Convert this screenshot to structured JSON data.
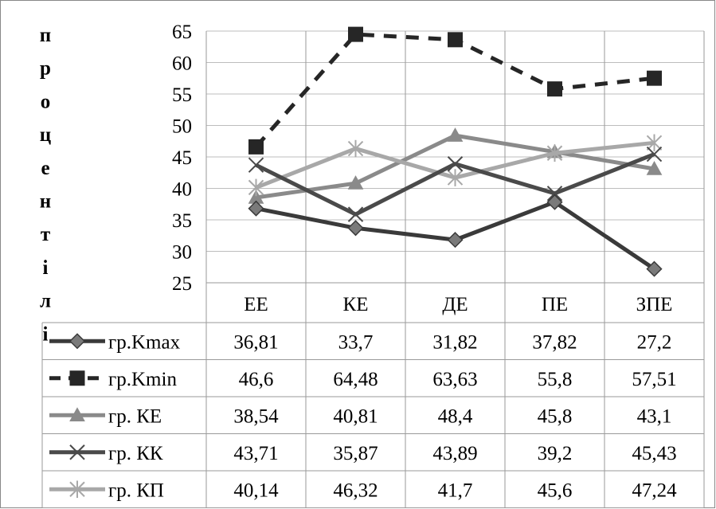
{
  "chart_data": {
    "type": "line",
    "ylabel": "процентілі",
    "ylim": [
      25,
      65
    ],
    "yticks": [
      25,
      30,
      35,
      40,
      45,
      50,
      55,
      60,
      65
    ],
    "grid": true,
    "legend_placement": "data-table",
    "categories": [
      "ЕЕ",
      "КЕ",
      "ДЕ",
      "ПЕ",
      "ЗПЕ"
    ],
    "series": [
      {
        "name": "гр.Kmax",
        "values": [
          36.81,
          33.7,
          31.82,
          37.82,
          27.2
        ],
        "labels": [
          "36,81",
          "33,7",
          "31,82",
          "37,82",
          "27,2"
        ],
        "color": "#3a3a3a",
        "marker": "diamond",
        "dash": false
      },
      {
        "name": "гр.Kmin",
        "values": [
          46.6,
          64.48,
          63.63,
          55.8,
          57.51
        ],
        "labels": [
          "46,6",
          "64,48",
          "63,63",
          "55,8",
          "57,51"
        ],
        "color": "#262626",
        "marker": "square",
        "dash": true
      },
      {
        "name": "гр. КЕ",
        "values": [
          38.54,
          40.81,
          48.4,
          45.8,
          43.1
        ],
        "labels": [
          "38,54",
          "40,81",
          "48,4",
          "45,8",
          "43,1"
        ],
        "color": "#8a8a8a",
        "marker": "triangle",
        "dash": false
      },
      {
        "name": "гр. КК",
        "values": [
          43.71,
          35.87,
          43.89,
          39.2,
          45.43
        ],
        "labels": [
          "43,71",
          "35,87",
          "43,89",
          "39,2",
          "45,43"
        ],
        "color": "#4a4a4a",
        "marker": "x",
        "dash": false
      },
      {
        "name": "гр. КП",
        "values": [
          40.14,
          46.32,
          41.7,
          45.6,
          47.24
        ],
        "labels": [
          "40,14",
          "46,32",
          "41,7",
          "45,6",
          "47,24"
        ],
        "color": "#a8a8a8",
        "marker": "star",
        "dash": false
      }
    ]
  }
}
